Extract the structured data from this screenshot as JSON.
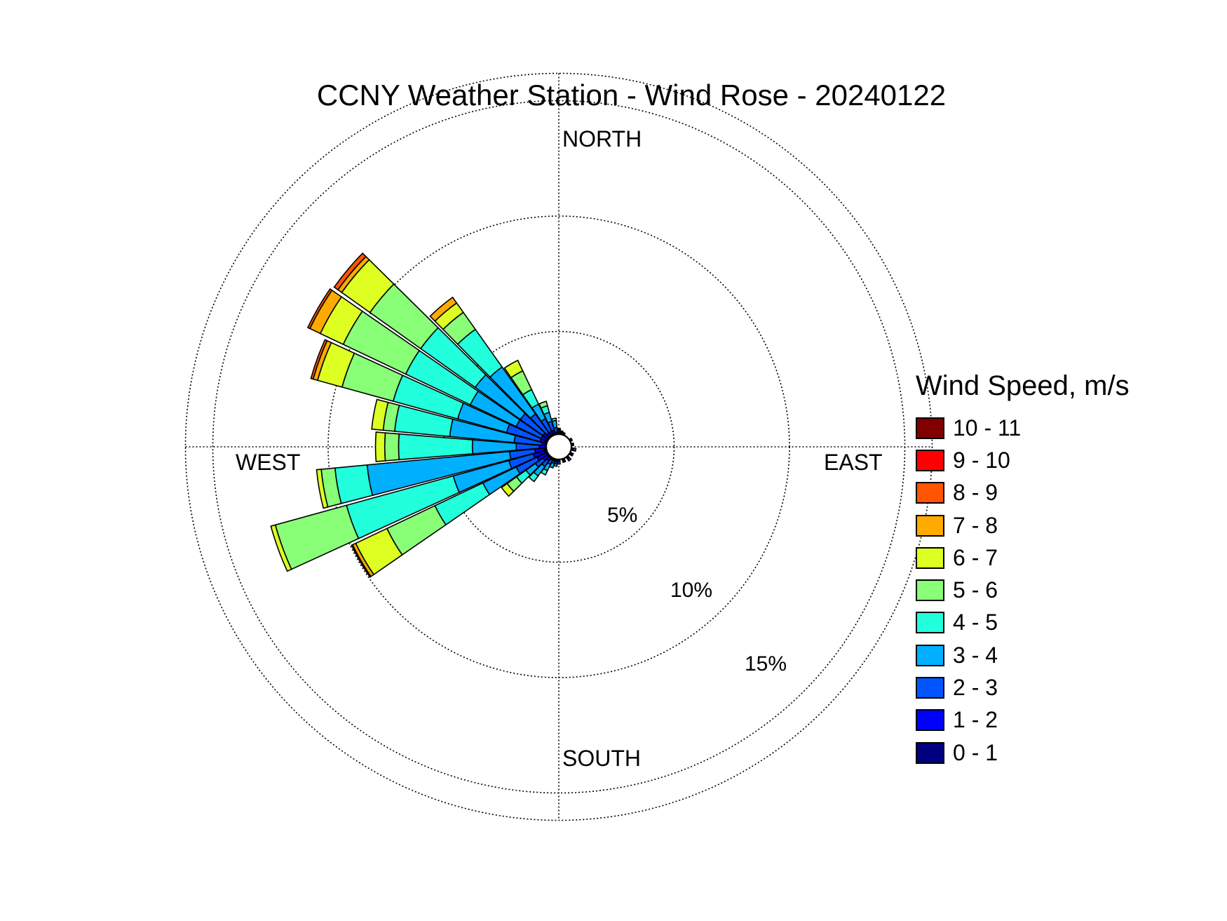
{
  "chart_data": {
    "type": "wind-rose",
    "title": "CCNY Weather Station - Wind Rose - 20240122",
    "directions": [
      "NORTH",
      "EAST",
      "SOUTH",
      "WEST"
    ],
    "rings": [
      {
        "value": 5,
        "label": "5%"
      },
      {
        "value": 10,
        "label": "10%"
      },
      {
        "value": 15,
        "label": "15%"
      }
    ],
    "grid": true,
    "legend_title": "Wind Speed, m/s",
    "legend_position": "right",
    "speed_bins": [
      {
        "label": "10 - 11",
        "color": "#800000"
      },
      {
        "label": "9 - 10",
        "color": "#ff0000"
      },
      {
        "label": "8 - 9",
        "color": "#ff5500"
      },
      {
        "label": "7 - 8",
        "color": "#ffaa00"
      },
      {
        "label": "6 - 7",
        "color": "#ddff22"
      },
      {
        "label": "5 - 6",
        "color": "#88ff77"
      },
      {
        "label": "4 - 5",
        "color": "#22ffdd"
      },
      {
        "label": "3 - 4",
        "color": "#00b0ff"
      },
      {
        "label": "2 - 3",
        "color": "#0055ff"
      },
      {
        "label": "1 - 2",
        "color": "#0000ff"
      },
      {
        "label": "0 - 1",
        "color": "#000080"
      }
    ],
    "bin_order_inner_to_outer": [
      "0 - 1",
      "1 - 2",
      "2 - 3",
      "3 - 4",
      "4 - 5",
      "5 - 6",
      "6 - 7",
      "7 - 8",
      "8 - 9",
      "9 - 10",
      "10 - 11"
    ],
    "sectors": [
      {
        "direction_deg": 0,
        "cumulative": [
          0.05,
          0.1,
          0.15,
          0.2,
          0.25
        ]
      },
      {
        "direction_deg": 10,
        "cumulative": [
          0.05,
          0.1,
          0.15
        ]
      },
      {
        "direction_deg": 20,
        "cumulative": [
          0.05,
          0.1
        ]
      },
      {
        "direction_deg": 60,
        "cumulative": [
          0.05,
          0.1
        ]
      },
      {
        "direction_deg": 80,
        "cumulative": [
          0.05,
          0.1
        ]
      },
      {
        "direction_deg": 100,
        "cumulative": [
          0.05,
          0.1,
          0.2
        ]
      },
      {
        "direction_deg": 120,
        "cumulative": [
          0.05,
          0.1,
          0.15
        ]
      },
      {
        "direction_deg": 140,
        "cumulative": [
          0.05,
          0.1,
          0.2
        ]
      },
      {
        "direction_deg": 160,
        "cumulative": [
          0.05,
          0.1,
          0.15
        ]
      },
      {
        "direction_deg": 180,
        "cumulative": [
          0.05,
          0.1,
          0.2
        ]
      },
      {
        "direction_deg": 190,
        "cumulative": [
          0.05,
          0.1,
          0.2,
          0.3
        ]
      },
      {
        "direction_deg": 200,
        "cumulative": [
          0.05,
          0.1,
          0.2,
          0.4
        ]
      },
      {
        "direction_deg": 210,
        "cumulative": [
          0.05,
          0.1,
          0.3,
          0.6,
          0.8
        ]
      },
      {
        "direction_deg": 220,
        "cumulative": [
          0.05,
          0.2,
          0.5,
          1.0,
          1.3
        ]
      },
      {
        "direction_deg": 230,
        "cumulative": [
          0.05,
          0.3,
          0.7,
          1.2,
          1.7,
          2.2,
          2.5
        ]
      },
      {
        "direction_deg": 240,
        "cumulative": [
          0.05,
          0.5,
          1.5,
          3.1,
          5.4,
          7.7,
          9.2,
          9.35,
          9.4
        ]
      },
      {
        "direction_deg": 250,
        "cumulative": [
          0.1,
          0.6,
          1.7,
          4.2,
          9.0,
          12.2,
          12.4
        ]
      },
      {
        "direction_deg": 260,
        "cumulative": [
          0.1,
          0.5,
          1.6,
          7.8,
          9.2,
          9.8,
          10.0
        ]
      },
      {
        "direction_deg": 270,
        "cumulative": [
          0.05,
          0.3,
          1.3,
          3.2,
          6.4,
          7.0,
          7.4
        ]
      },
      {
        "direction_deg": 280,
        "cumulative": [
          0.05,
          0.2,
          1.4,
          4.2,
          6.6,
          7.1,
          7.6
        ]
      },
      {
        "direction_deg": 290,
        "cumulative": [
          0.05,
          0.3,
          1.8,
          4.0,
          6.9,
          9.2,
          10.3,
          10.5,
          10.6
        ]
      },
      {
        "direction_deg": 300,
        "cumulative": [
          0.05,
          0.3,
          1.5,
          3.7,
          6.8,
          9.8,
          10.9,
          11.4,
          11.5
        ]
      },
      {
        "direction_deg": 310,
        "cumulative": [
          0.05,
          0.3,
          1.5,
          3.9,
          6.8,
          9.5,
          11.0,
          11.2,
          11.4
        ]
      },
      {
        "direction_deg": 320,
        "cumulative": [
          0.05,
          0.2,
          1.2,
          3.7,
          5.7,
          6.6,
          7.1,
          7.4
        ]
      },
      {
        "direction_deg": 330,
        "cumulative": [
          0.05,
          0.2,
          0.8,
          1.5,
          2.2,
          3.1,
          3.6
        ]
      },
      {
        "direction_deg": 340,
        "cumulative": [
          0.05,
          0.2,
          0.6,
          1.0,
          1.3,
          1.5
        ]
      },
      {
        "direction_deg": 350,
        "cumulative": [
          0.05,
          0.1,
          0.3,
          0.6,
          0.7
        ]
      }
    ]
  }
}
